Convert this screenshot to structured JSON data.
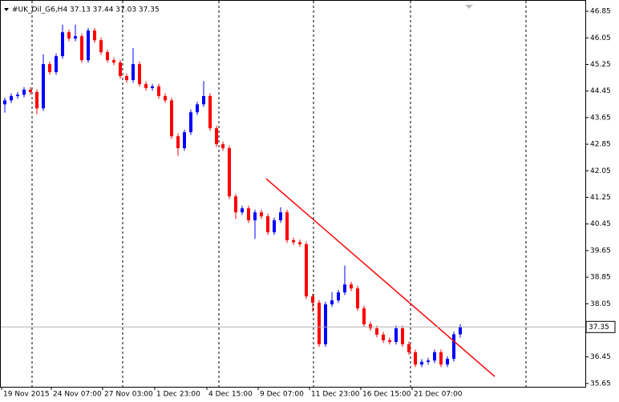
{
  "chart_data": {
    "type": "candlestick",
    "title": "#UK_Oil_G6,H4  37.13 37.44 37.03 37.35",
    "x_labels": [
      "19 Nov 2015",
      "24 Nov 07:00",
      "27 Nov 03:00",
      "1 Dec 23:00",
      "4 Dec 15:00",
      "9 Dec 07:00",
      "11 Dec 23:00",
      "16 Dec 15:00",
      "21 Dec 07:00"
    ],
    "open": [
      44.05,
      44.17,
      44.3,
      44.34,
      44.49,
      44.42,
      43.93,
      45.26,
      45.02,
      45.5,
      46.22,
      46.03,
      46.1,
      45.38,
      46.27,
      45.98,
      45.62,
      45.38,
      45.31,
      44.9,
      44.78,
      45.26,
      44.66,
      44.54,
      44.59,
      44.3,
      44.17,
      43.09,
      42.73,
      43.21,
      43.81,
      44.05,
      44.3,
      43.33,
      42.85,
      42.73,
      41.28,
      40.8,
      40.92,
      40.56,
      40.8,
      40.68,
      40.2,
      40.56,
      40.8,
      39.96,
      39.9,
      39.84,
      38.27,
      38.08,
      36.83,
      38.03,
      38.15,
      38.39,
      38.63,
      38.51,
      37.91,
      37.43,
      37.31,
      37.12,
      36.95,
      36.9,
      37.31,
      36.83,
      36.59,
      36.22,
      36.3,
      36.34,
      36.59,
      36.22,
      36.39,
      37.13
    ],
    "high": [
      44.25,
      44.38,
      44.42,
      44.57,
      44.57,
      44.5,
      45.55,
      45.34,
      45.58,
      46.45,
      46.3,
      46.45,
      46.18,
      46.35,
      46.35,
      46.06,
      45.7,
      45.46,
      45.39,
      44.98,
      45.74,
      45.34,
      44.74,
      44.67,
      44.67,
      44.38,
      44.25,
      43.17,
      43.29,
      43.89,
      44.13,
      44.75,
      44.38,
      43.41,
      42.93,
      42.81,
      41.36,
      41.0,
      41.0,
      40.88,
      40.88,
      40.76,
      40.64,
      40.95,
      40.88,
      40.04,
      39.98,
      39.92,
      38.35,
      38.16,
      38.11,
      38.4,
      38.47,
      39.2,
      38.71,
      38.59,
      37.99,
      37.51,
      37.39,
      37.2,
      37.03,
      37.39,
      37.39,
      36.91,
      36.67,
      36.38,
      36.42,
      36.67,
      36.67,
      36.47,
      37.21,
      37.44
    ],
    "low": [
      43.8,
      44.09,
      44.22,
      44.26,
      44.34,
      43.75,
      43.85,
      44.94,
      44.94,
      45.42,
      45.95,
      45.95,
      45.3,
      45.3,
      45.9,
      45.54,
      45.3,
      45.23,
      44.82,
      44.7,
      44.7,
      44.58,
      44.46,
      44.46,
      44.22,
      44.09,
      43.01,
      42.5,
      42.65,
      43.13,
      43.73,
      43.97,
      43.25,
      42.77,
      42.65,
      41.2,
      40.6,
      40.72,
      40.48,
      40.0,
      40.6,
      40.12,
      40.12,
      40.48,
      39.88,
      39.82,
      39.76,
      38.19,
      37.8,
      36.75,
      36.75,
      37.95,
      38.07,
      38.31,
      38.43,
      37.83,
      37.35,
      37.23,
      37.04,
      36.87,
      36.82,
      36.82,
      36.75,
      36.51,
      36.14,
      36.14,
      36.22,
      36.26,
      36.14,
      36.14,
      36.31,
      37.03
    ],
    "close": [
      44.17,
      44.3,
      44.34,
      44.49,
      44.42,
      43.93,
      45.26,
      45.02,
      45.5,
      46.22,
      46.03,
      46.1,
      45.38,
      46.27,
      45.98,
      45.62,
      45.38,
      45.31,
      44.9,
      44.78,
      45.26,
      44.66,
      44.54,
      44.59,
      44.3,
      44.17,
      43.09,
      42.73,
      43.21,
      43.81,
      44.05,
      44.3,
      43.33,
      42.85,
      42.73,
      41.28,
      40.8,
      40.92,
      40.56,
      40.8,
      40.68,
      40.2,
      40.56,
      40.8,
      39.96,
      39.9,
      39.84,
      38.27,
      38.08,
      36.83,
      38.03,
      38.15,
      38.39,
      38.63,
      38.51,
      37.91,
      37.43,
      37.31,
      37.12,
      36.95,
      36.9,
      37.31,
      36.83,
      36.59,
      36.22,
      36.3,
      36.34,
      36.59,
      36.22,
      36.39,
      37.13,
      37.35
    ],
    "up_color": "#0000ff",
    "down_color": "#ff0000",
    "current_price": 37.35,
    "trendline": {
      "start": 41.81,
      "end": 35.86,
      "color": "#ff0000"
    },
    "ylim": [
      35.55,
      47.19
    ],
    "yticks": [
      46.85,
      46.05,
      45.25,
      44.45,
      43.65,
      42.85,
      42.05,
      41.25,
      40.45,
      39.65,
      38.85,
      38.05,
      36.45,
      35.65
    ]
  }
}
